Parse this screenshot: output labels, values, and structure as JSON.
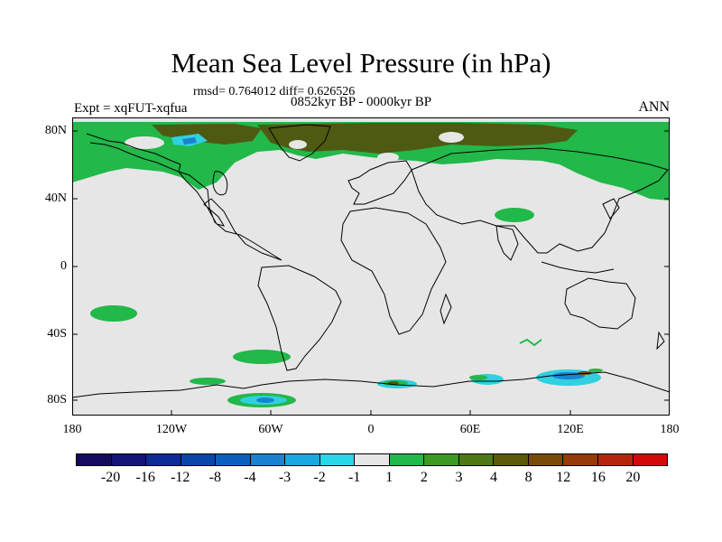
{
  "title": "Mean Sea Level Pressure (in hPa)",
  "stats": "rmsd= 0.764012 diff= 0.626526",
  "period": "0852kyr BP - 0000kyr BP",
  "experiment": "Expt = xqFUT-xqfua",
  "season": "ANN",
  "axes": {
    "lat_labels": [
      "80N",
      "40N",
      "0",
      "40S",
      "80S"
    ],
    "lon_labels": [
      "180",
      "120W",
      "60W",
      "0",
      "60E",
      "120E",
      "180"
    ]
  },
  "colorbar": {
    "labels": [
      "-20",
      "-16",
      "-12",
      "-8",
      "-4",
      "-3",
      "-2",
      "-1",
      "1",
      "2",
      "3",
      "4",
      "8",
      "12",
      "16",
      "20"
    ],
    "colors": [
      "#160a5e",
      "#141479",
      "#0e2c96",
      "#0a46aa",
      "#0a5fbe",
      "#1a82d0",
      "#1aa8e0",
      "#28d8e8",
      "#e6e6e6",
      "#22b84a",
      "#3c9a22",
      "#4e7a14",
      "#5a5a0a",
      "#7a4a0a",
      "#963a0a",
      "#b4260a",
      "#d20a0a"
    ]
  },
  "palette": {
    "ocean_gray": "#e6e6e6",
    "green": "#22b84a",
    "olive": "#4e5a12",
    "cyan": "#30d0e0",
    "blue": "#1a82d0",
    "brown": "#7a4a0a"
  }
}
